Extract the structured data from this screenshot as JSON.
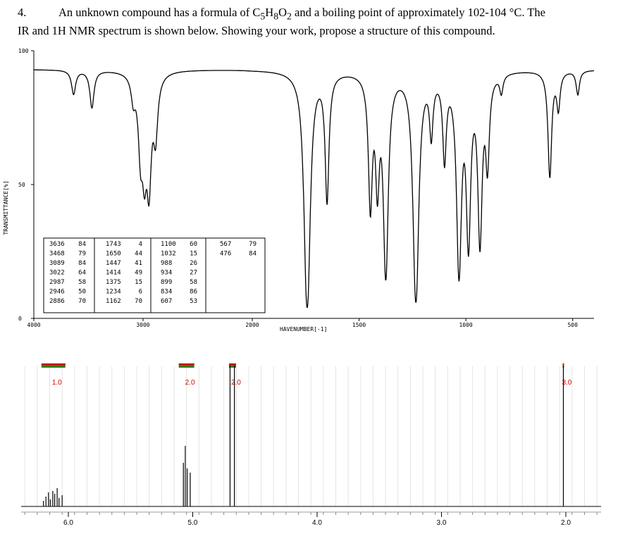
{
  "question": {
    "number": "4.",
    "text_line1": "An unknown compound has a formula of C5H8O2 and a boiling point of approximately 102-104 °C.  The",
    "text_line2": "IR and 1H NMR spectrum is shown below.  Showing your work, propose a structure of this compound."
  },
  "ir": {
    "ylabel": "TRANSMITTANCE[%]",
    "xlabel": "HAVENUMBER[-1]",
    "y_ticks": [
      "100",
      "50",
      "0"
    ],
    "x_ticks": [
      "4000",
      "3000",
      "2000",
      "1500",
      "1000",
      "500"
    ],
    "peak_table": [
      [
        [
          "3636",
          "84"
        ],
        [
          "3468",
          "79"
        ],
        [
          "3089",
          "84"
        ],
        [
          "3022",
          "64"
        ],
        [
          "2987",
          "58"
        ],
        [
          "2946",
          "50"
        ],
        [
          "2886",
          "70"
        ]
      ],
      [
        [
          "1743",
          "4"
        ],
        [
          "1650",
          "44"
        ],
        [
          "1447",
          "41"
        ],
        [
          "1414",
          "49"
        ],
        [
          "1375",
          "15"
        ],
        [
          "1234",
          "6"
        ],
        [
          "1162",
          "70"
        ]
      ],
      [
        [
          "1100",
          "60"
        ],
        [
          "1032",
          "15"
        ],
        [
          "988",
          "26"
        ],
        [
          "934",
          "27"
        ],
        [
          "899",
          "58"
        ],
        [
          "834",
          "86"
        ],
        [
          "607",
          "53"
        ]
      ],
      [
        [
          "567",
          "79"
        ],
        [
          "476",
          "84"
        ]
      ]
    ]
  },
  "nmr": {
    "x_ticks": [
      "6.0",
      "5.0",
      "4.0",
      "3.0",
      "2.0"
    ],
    "integrations": [
      "1.0",
      "2.0",
      "2.0",
      "3.0"
    ]
  },
  "chart_data": [
    {
      "type": "line",
      "title": "",
      "xlabel": "HAVENUMBER[-1]",
      "ylabel": "TRANSMITTANCE[%]",
      "xlim": [
        4000,
        400
      ],
      "ylim": [
        0,
        100
      ],
      "x_ticks": [
        4000,
        3000,
        2000,
        1500,
        1000,
        500
      ],
      "series": [
        {
          "x": [
            4000,
            3636,
            3468,
            3089,
            3022,
            2987,
            2946,
            2886,
            2500,
            2200,
            1743,
            1650,
            1447,
            1414,
            1375,
            1234,
            1162,
            1100,
            1032,
            988,
            934,
            899,
            834,
            607,
            567,
            476,
            400
          ],
          "y": [
            93,
            84,
            79,
            84,
            64,
            58,
            50,
            70,
            94,
            92,
            4,
            44,
            41,
            49,
            15,
            6,
            70,
            60,
            15,
            26,
            27,
            58,
            86,
            53,
            79,
            84,
            94
          ]
        }
      ]
    },
    {
      "type": "line",
      "title": "",
      "xlabel": "",
      "ylabel": "",
      "xlim": [
        6.4,
        1.8
      ],
      "x_ticks": [
        6.0,
        5.0,
        4.0,
        3.0,
        2.0
      ],
      "series": [
        {
          "x": [
            6.12,
            5.05,
            4.68,
            2.02
          ],
          "y": [
            10,
            28,
            100,
            100
          ]
        }
      ],
      "integrations": [
        {
          "x": 6.12,
          "value": "1.0"
        },
        {
          "x": 5.05,
          "value": "2.0"
        },
        {
          "x": 4.68,
          "value": "2.0"
        },
        {
          "x": 2.02,
          "value": "3.0"
        }
      ]
    }
  ]
}
